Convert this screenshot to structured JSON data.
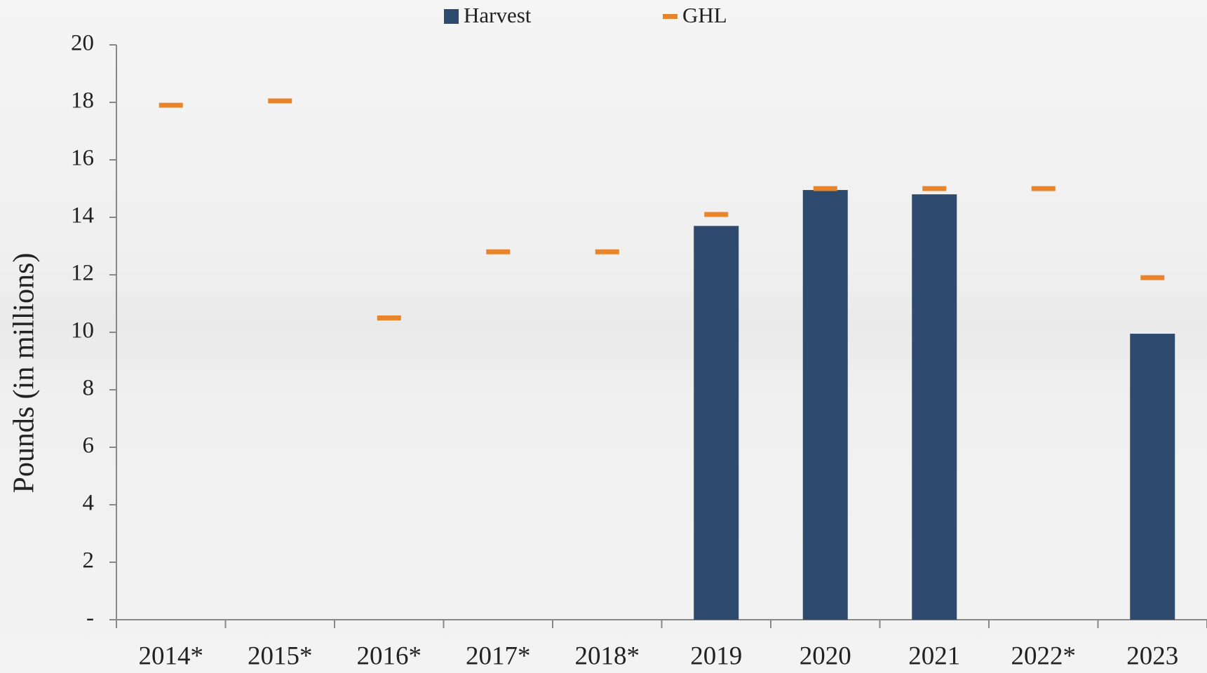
{
  "chart_data": {
    "type": "bar",
    "y_label": "Pounds (in millions)",
    "categories": [
      "2014*",
      "2015*",
      "2016*",
      "2017*",
      "2018*",
      "2019",
      "2020",
      "2021",
      "2022*",
      "2023"
    ],
    "series": [
      {
        "name": "Harvest",
        "color": "#2e4a6e",
        "type": "bar",
        "values": [
          null,
          null,
          null,
          null,
          null,
          13.7,
          14.95,
          14.8,
          null,
          9.95
        ]
      },
      {
        "name": "GHL",
        "color": "#e8842c",
        "type": "marker",
        "values": [
          17.9,
          18.05,
          10.5,
          12.8,
          12.8,
          14.1,
          15.0,
          15.0,
          15.0,
          11.9
        ]
      }
    ],
    "ylim": [
      0,
      20
    ],
    "yticks": [
      {
        "value": 0,
        "label": "-"
      },
      2,
      4,
      6,
      8,
      10,
      12,
      14,
      16,
      18,
      20
    ],
    "grid": false
  }
}
